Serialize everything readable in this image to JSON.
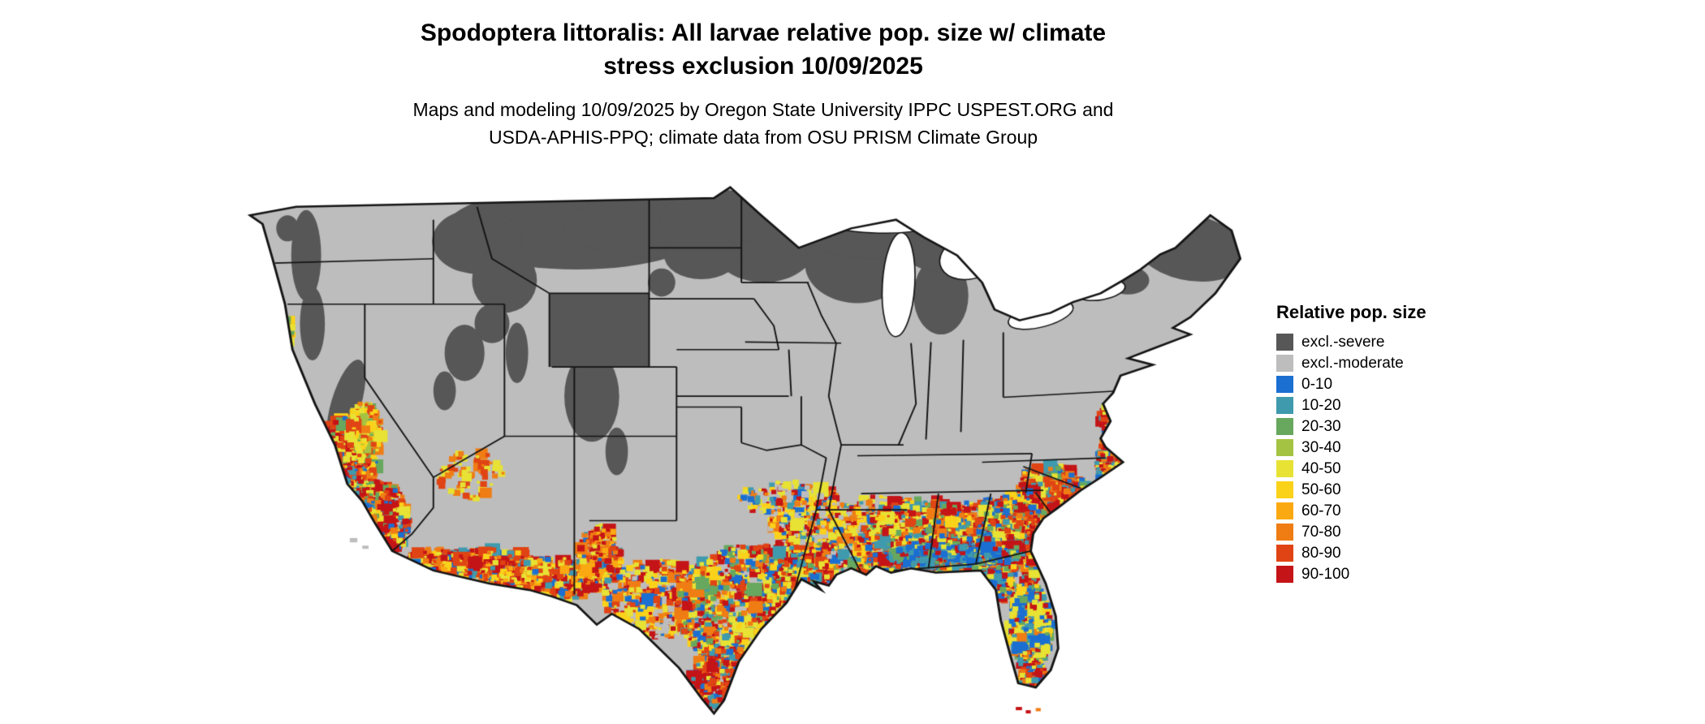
{
  "title": {
    "line1": "Spodoptera littoralis: All larvae relative pop. size w/ climate",
    "line2": "stress exclusion 10/09/2025"
  },
  "subtitle": {
    "line1": "Maps and modeling 10/09/2025 by Oregon State University IPPC USPEST.ORG and",
    "line2": "USDA-APHIS-PPQ; climate data from OSU PRISM Climate Group"
  },
  "legend": {
    "title": "Relative pop. size",
    "items": [
      {
        "label": "excl.-severe",
        "color": "#575757"
      },
      {
        "label": "excl.-moderate",
        "color": "#bdbdbd"
      },
      {
        "label": "0-10",
        "color": "#1b6fd1"
      },
      {
        "label": "10-20",
        "color": "#3f9aae"
      },
      {
        "label": "20-30",
        "color": "#67a85e"
      },
      {
        "label": "30-40",
        "color": "#a5c342"
      },
      {
        "label": "40-50",
        "color": "#e7e234"
      },
      {
        "label": "50-60",
        "color": "#fbd21a"
      },
      {
        "label": "60-70",
        "color": "#fba912"
      },
      {
        "label": "70-80",
        "color": "#ef7d14"
      },
      {
        "label": "80-90",
        "color": "#e04414"
      },
      {
        "label": "90-100",
        "color": "#c51417"
      }
    ]
  },
  "map": {
    "region_label": "Contiguous United States relative population size raster",
    "base_fill": "#bdbdbd",
    "boundary_color": "#141414",
    "water_color": "#ffffff"
  }
}
